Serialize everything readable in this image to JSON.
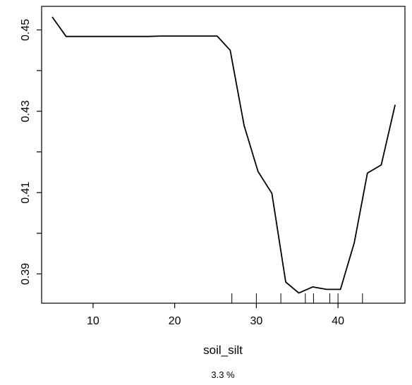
{
  "chart_data": {
    "type": "line",
    "xlabel": "soil_silt",
    "ylabel": "",
    "caption": "3.3 %",
    "xlim": [
      3.7,
      48.2
    ],
    "ylim": [
      0.3828,
      0.4558
    ],
    "x_ticks": [
      10,
      20,
      30,
      40
    ],
    "y_ticks": [
      0.39,
      0.41,
      0.43,
      0.45
    ],
    "y_tick_labels": [
      "0.39",
      "0.41",
      "0.43",
      "0.45"
    ],
    "x_minor_ticks": [
      0.39,
      0.4,
      0.41,
      0.42,
      0.43,
      0.44,
      0.45
    ],
    "grid": false,
    "line_color": "#000000",
    "series": [
      {
        "x": [
          5.0,
          6.7,
          8.4,
          10.0,
          11.7,
          13.4,
          15.1,
          16.8,
          18.4,
          20.1,
          21.8,
          23.5,
          25.2,
          26.8,
          28.5,
          30.2,
          31.9,
          33.6,
          35.2,
          36.9,
          38.6,
          40.3,
          42.0,
          43.6,
          45.3,
          47.0
        ],
        "y": [
          0.4532,
          0.4484,
          0.4484,
          0.4484,
          0.4484,
          0.4484,
          0.4484,
          0.4484,
          0.4485,
          0.4485,
          0.4485,
          0.4485,
          0.4485,
          0.445,
          0.4265,
          0.4152,
          0.4098,
          0.388,
          0.3853,
          0.3868,
          0.3862,
          0.3862,
          0.3977,
          0.4148,
          0.4168,
          0.4316
        ]
      }
    ],
    "rug_x": [
      27.0,
      30.0,
      33.0,
      36.0,
      37.0,
      39.0,
      40.0,
      43.0
    ]
  }
}
